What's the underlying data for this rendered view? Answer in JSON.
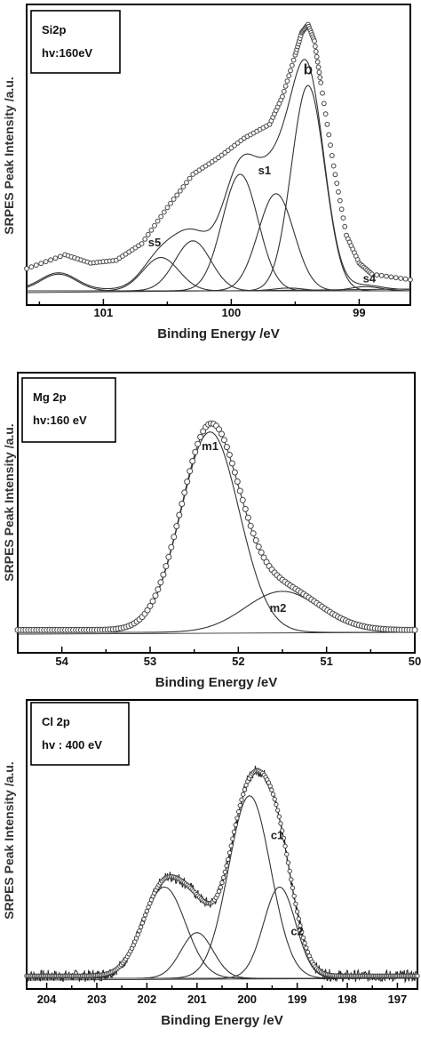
{
  "chart_data": [
    {
      "type": "line",
      "legend": {
        "line1": "Si2p",
        "line2": "hv:160eV"
      },
      "xlabel": "Binding Energy /eV",
      "ylabel": "SRPES Peak Intensity /a.u.",
      "xlim": [
        101.6,
        98.6
      ],
      "xticks": [
        101,
        100,
        99
      ],
      "x_reversed": true,
      "series": [
        {
          "role": "data",
          "points": [
            [
              101.6,
              0.08
            ],
            [
              101.3,
              0.13
            ],
            [
              101.1,
              0.1
            ],
            [
              100.9,
              0.11
            ],
            [
              100.7,
              0.17
            ],
            [
              100.5,
              0.3
            ],
            [
              100.3,
              0.42
            ],
            [
              100.1,
              0.48
            ],
            [
              99.9,
              0.55
            ],
            [
              99.7,
              0.6
            ],
            [
              99.6,
              0.7
            ],
            [
              99.5,
              0.85
            ],
            [
              99.45,
              0.93
            ],
            [
              99.4,
              0.96
            ],
            [
              99.35,
              0.9
            ],
            [
              99.3,
              0.75
            ],
            [
              99.2,
              0.45
            ],
            [
              99.1,
              0.2
            ],
            [
              99.0,
              0.1
            ],
            [
              98.9,
              0.06
            ],
            [
              98.6,
              0.04
            ]
          ]
        },
        {
          "name": "b",
          "role": "component",
          "center": 99.4,
          "height": 0.74,
          "width": 0.13
        },
        {
          "name": "s1",
          "role": "component",
          "center": 99.65,
          "height": 0.35,
          "width": 0.14
        },
        {
          "name": "",
          "role": "component",
          "center": 99.93,
          "height": 0.42,
          "width": 0.14
        },
        {
          "name": "",
          "role": "component",
          "center": 100.3,
          "height": 0.18,
          "width": 0.14
        },
        {
          "name": "s5",
          "role": "component",
          "center": 100.55,
          "height": 0.12,
          "width": 0.14
        },
        {
          "name": "",
          "role": "component",
          "center": 101.35,
          "height": 0.06,
          "width": 0.14
        },
        {
          "name": "",
          "role": "component",
          "center": 99.55,
          "height": 0.01,
          "width": 0.12
        },
        {
          "name": "s4",
          "role": "component",
          "center": 98.95,
          "height": 0.015,
          "width": 0.12
        }
      ],
      "labels": [
        {
          "text": "b",
          "x": 99.4,
          "y": 0.78,
          "size": "large"
        },
        {
          "text": "s1",
          "x": 99.74,
          "y": 0.42,
          "size": "normal"
        },
        {
          "text": "s5",
          "x": 100.6,
          "y": 0.16,
          "size": "normal"
        },
        {
          "text": "s4",
          "x": 98.92,
          "y": 0.03,
          "size": "normal"
        }
      ]
    },
    {
      "type": "line",
      "legend": {
        "line1": "Mg 2p",
        "line2": "hv:160 eV"
      },
      "xlabel": "Binding Energy /eV",
      "ylabel": "SRPES Peak Intensity /a.u.",
      "xlim": [
        54.5,
        50.0
      ],
      "xticks": [
        54,
        53,
        52,
        51,
        50
      ],
      "x_reversed": true,
      "series": [
        {
          "role": "data",
          "points": []
        },
        {
          "name": "m1",
          "role": "component",
          "center": 52.32,
          "height": 0.88,
          "width": 0.33
        },
        {
          "name": "m2",
          "role": "component",
          "center": 51.5,
          "height": 0.18,
          "width": 0.42
        }
      ],
      "labels": [
        {
          "text": "m1",
          "x": 52.32,
          "y": 0.8,
          "size": "normal"
        },
        {
          "text": "m2",
          "x": 51.55,
          "y": 0.09,
          "size": "normal"
        }
      ]
    },
    {
      "type": "line",
      "legend": {
        "line1": "Cl 2p",
        "line2": "hv : 400 eV"
      },
      "xlabel": "Binding Energy /eV",
      "ylabel": "SRPES Peak Intensity /a.u.",
      "xlim": [
        204.4,
        196.6
      ],
      "xticks": [
        204,
        203,
        202,
        201,
        200,
        199,
        198,
        197
      ],
      "x_reversed": true,
      "series": [
        {
          "role": "data",
          "points": []
        },
        {
          "name": "c1",
          "role": "component",
          "center": 199.95,
          "height": 0.76,
          "width": 0.42
        },
        {
          "name": "c2",
          "role": "component",
          "center": 199.35,
          "height": 0.38,
          "width": 0.32
        },
        {
          "name": "",
          "role": "component",
          "center": 201.65,
          "height": 0.38,
          "width": 0.42
        },
        {
          "name": "",
          "role": "component",
          "center": 201.0,
          "height": 0.19,
          "width": 0.32
        }
      ],
      "labels": [
        {
          "text": "c1",
          "x": 199.4,
          "y": 0.58,
          "size": "normal"
        },
        {
          "text": "c2",
          "x": 199.0,
          "y": 0.18,
          "size": "normal"
        }
      ]
    }
  ]
}
